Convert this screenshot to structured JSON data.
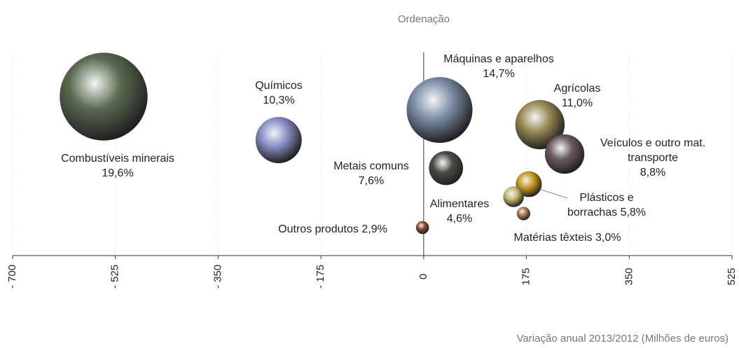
{
  "chart_data": {
    "type": "bubble",
    "title": "Ordenação",
    "x_label": "Variação anual 2013/2012 (Milhões de euros)",
    "labels": [
      "Combustíveis minerais",
      "Químicos",
      "Máquinas e aparelhos",
      "Agrícolas",
      "Veículos e outro mat. transporte",
      "Metais comuns",
      "Plásticos e borrachas",
      "Alimentares",
      "Matérias têxteis",
      "Outros produtos"
    ],
    "x": [
      -545,
      -247,
      27,
      198,
      240,
      38,
      179,
      153,
      170,
      -2
    ],
    "values": [
      19.6,
      10.3,
      14.7,
      11.0,
      8.8,
      7.6,
      5.8,
      4.6,
      3.0,
      2.9
    ],
    "value_labels": [
      "19,6%",
      "10,3%",
      "14,7%",
      "11,0%",
      "8,8%",
      "7,6%",
      "5,8%",
      "4,6%",
      "3,0%",
      "2,9%"
    ],
    "colors": [
      "#5a6a50",
      "#8a8fc8",
      "#7c8ea8",
      "#9a8a55",
      "#6a5a60",
      "#4a4a44",
      "#c89a20",
      "#c8b870",
      "#b07850",
      "#8a4a2a"
    ],
    "xlim": [
      -700,
      525
    ],
    "xticks": [
      {
        "value": -700,
        "label": "- 700"
      },
      {
        "value": -525,
        "label": "- 525"
      },
      {
        "value": -350,
        "label": "- 350"
      },
      {
        "value": -175,
        "label": "- 175"
      },
      0,
      175,
      350,
      525
    ],
    "grid": true
  }
}
